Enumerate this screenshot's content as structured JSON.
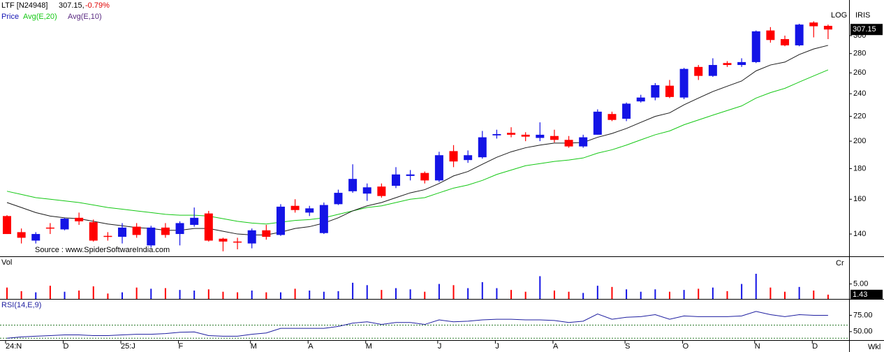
{
  "chart_data": [
    {
      "type": "candlestick",
      "symbol": "LTF [N24948]",
      "last_label": "307.15,",
      "change": "-0.79%",
      "price_label": "Price",
      "scale_label": "LOG",
      "brand": "IRIS",
      "source": "Source : www.SpiderSoftwareIndia.com",
      "timeframe": "Wkl",
      "log_scale": true,
      "up_color": "#1414e6",
      "down_color": "#ff0000",
      "categories": [
        "24:N",
        null,
        null,
        null,
        "D",
        null,
        null,
        null,
        "25:J",
        null,
        null,
        null,
        "F",
        null,
        null,
        null,
        null,
        "M",
        null,
        null,
        null,
        "A",
        null,
        null,
        null,
        "M",
        null,
        null,
        null,
        null,
        "J",
        null,
        null,
        null,
        "J",
        null,
        null,
        null,
        "A",
        null,
        null,
        null,
        null,
        "S",
        null,
        null,
        null,
        "O",
        null,
        null,
        null,
        null,
        "N",
        null,
        null,
        null,
        "D",
        null
      ],
      "open": [
        150,
        141,
        136.5,
        143.5,
        142.5,
        149,
        146.5,
        139,
        138.5,
        144,
        134,
        143.5,
        140,
        145,
        151.5,
        137.5,
        136,
        135,
        142,
        139.5,
        156,
        152,
        140.5,
        157,
        165,
        163.5,
        168,
        168.5,
        175,
        177,
        172,
        192.5,
        186,
        188,
        204.5,
        206.5,
        205,
        202.5,
        204,
        201,
        196,
        205,
        222,
        218,
        233,
        236.5,
        247.5,
        236.5,
        266,
        257,
        270,
        268,
        271,
        306,
        296,
        289,
        315.5,
        311.5
      ],
      "high": [
        150.5,
        143,
        141,
        146,
        149,
        152,
        148,
        141,
        146,
        146,
        144.5,
        146,
        147,
        155,
        153,
        138,
        138,
        143,
        145,
        157,
        160,
        156,
        158,
        166,
        183,
        170,
        170,
        181,
        179,
        178,
        192,
        197,
        193,
        208,
        209,
        211,
        207,
        215,
        209,
        204,
        205,
        226,
        224,
        232,
        239,
        250,
        253,
        265,
        268,
        275,
        272,
        275,
        306,
        310,
        300,
        314,
        317,
        313
      ],
      "low": [
        140,
        135,
        135,
        140,
        142,
        145,
        136,
        136.5,
        135,
        138,
        133,
        138,
        134,
        144,
        136,
        131,
        132,
        132.5,
        137,
        139,
        152,
        150,
        140,
        156.5,
        164,
        159,
        161,
        167,
        172,
        170,
        171,
        181,
        184,
        187,
        202,
        203,
        200,
        200,
        199,
        195,
        195,
        205,
        216,
        216,
        232,
        234,
        236,
        235,
        253,
        256,
        266,
        266,
        270,
        292,
        288,
        288,
        298,
        296
      ],
      "close": [
        140,
        138,
        140,
        143,
        148.5,
        147,
        136.5,
        138.5,
        143.5,
        139.5,
        143.5,
        139.5,
        146,
        149,
        136.5,
        136,
        135.5,
        142,
        138.5,
        155.5,
        153.5,
        154.5,
        156.5,
        164,
        173,
        167.5,
        162,
        176,
        176,
        172,
        189.5,
        185,
        189.5,
        203,
        205.5,
        205,
        203.5,
        205,
        201,
        196,
        203,
        224,
        217,
        231,
        236.5,
        248,
        237,
        264,
        257,
        268,
        268,
        271,
        305,
        295,
        289,
        313,
        311,
        307.15
      ],
      "series": [
        {
          "name": "Avg(E,20)",
          "color": "#14c814",
          "values": [
            165,
            163,
            161,
            160,
            159,
            158,
            156.5,
            155,
            154,
            153,
            152,
            151,
            150.5,
            150.5,
            150,
            148.5,
            147,
            146,
            145.5,
            146.5,
            147.5,
            148,
            149,
            151,
            153,
            155,
            156,
            158,
            160,
            161,
            164,
            167,
            169,
            172,
            176,
            179,
            182,
            183.5,
            185,
            186,
            187.5,
            191,
            193.5,
            197,
            201,
            205,
            208,
            213,
            217,
            221,
            225,
            229,
            236,
            241,
            245,
            251,
            257,
            263
          ]
        },
        {
          "name": "Avg(E,10)",
          "color": "#1a1a1a",
          "values": [
            158,
            155,
            152,
            150,
            149,
            148.5,
            147,
            145.5,
            144.5,
            143.5,
            143,
            142,
            142,
            143,
            143,
            141.5,
            140,
            139.5,
            139.5,
            141,
            143,
            144,
            146,
            149,
            153,
            156,
            158,
            161,
            164,
            166,
            170,
            175,
            178,
            183,
            188,
            192,
            195,
            197,
            198.5,
            198.5,
            199,
            203,
            206,
            210,
            215,
            220,
            223,
            230,
            236,
            242,
            247,
            252,
            262,
            268,
            271,
            279,
            285,
            289
          ]
        }
      ],
      "ylim": [
        128.5,
        344
      ],
      "yticks": [
        140,
        160,
        180,
        200,
        220,
        240,
        260,
        280,
        300
      ]
    },
    {
      "type": "bar",
      "title": "Vol",
      "unit": "Cr",
      "values": [
        3.8,
        2.6,
        2.2,
        4.4,
        2.4,
        2.8,
        4.2,
        1.8,
        2.2,
        3.8,
        3.4,
        3.6,
        3,
        2.8,
        3.2,
        2.4,
        2.2,
        2.8,
        2.2,
        2.2,
        3.4,
        2.8,
        2.4,
        2.6,
        5.4,
        4.6,
        3,
        3.6,
        3.2,
        2.4,
        5,
        4.6,
        3.6,
        5.6,
        3.6,
        3,
        2.4,
        7.6,
        2.8,
        2.4,
        2,
        4.4,
        4,
        3.2,
        2.4,
        3.2,
        2.4,
        3,
        3.4,
        3.8,
        2.6,
        5,
        8.4,
        3.8,
        2.4,
        4,
        2.8,
        1.43
      ],
      "ylim": [
        0,
        14
      ],
      "yticks": [
        {
          "value": 5,
          "label": "5.00"
        }
      ]
    },
    {
      "type": "line",
      "title": "RSI(14,E,9)",
      "color": "#1e1ea0",
      "values": [
        40,
        42,
        43,
        44,
        45,
        45,
        44,
        44,
        45,
        46,
        46,
        47,
        49,
        49.5,
        44,
        43,
        43,
        46,
        48,
        55,
        55,
        55,
        55,
        58,
        63,
        65,
        61,
        64,
        64,
        61,
        68,
        65,
        66,
        68,
        69,
        69,
        68,
        68,
        67,
        64,
        66,
        77,
        69,
        72,
        73,
        76,
        69,
        74,
        73,
        73,
        73,
        74,
        81,
        76,
        73,
        76,
        75,
        75
      ],
      "ylim": [
        37,
        99
      ],
      "yticks": [
        {
          "value": 75,
          "label": "75.00"
        },
        {
          "value": 50,
          "label": "50.00"
        }
      ],
      "ref_lines": [
        60,
        40
      ]
    }
  ]
}
